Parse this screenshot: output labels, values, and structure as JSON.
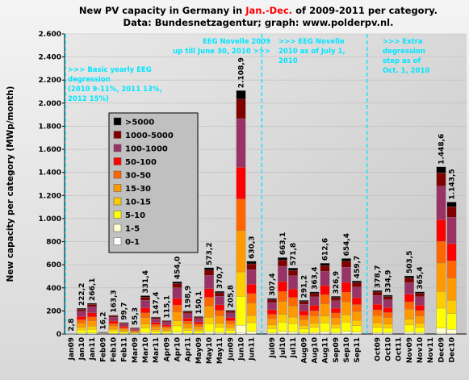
{
  "chart_data": {
    "type": "stacked_bar",
    "title_prefix": "New PV capacity in Germany in ",
    "title_highlight": "Jan.-Dec.",
    "title_suffix": " of 2009-2011 per category.",
    "subtitle": "Data: Bundesnetzagentur; graph: www.polderpv.nl.",
    "highlight_color": "#ff0000",
    "y_label": "New capacity per category (MWp/month)",
    "ylim": [
      0,
      2600
    ],
    "yticks": [
      0,
      200,
      400,
      600,
      800,
      {
        "value": 1000,
        "label": "1.000"
      },
      {
        "value": 1200,
        "label": "1.200"
      },
      {
        "value": 1400,
        "label": "1.400"
      },
      {
        "value": 1600,
        "label": "1.600"
      },
      {
        "value": 1800,
        "label": "1.800"
      },
      {
        "value": 2000,
        "label": "2.000"
      },
      {
        "value": 2200,
        "label": "2.200"
      },
      {
        "value": 2400,
        "label": "2.400"
      },
      {
        "value": 2600,
        "label": "2.600"
      }
    ],
    "grid": true,
    "legend_position": "upper left",
    "annotation_color": "#00e5ff",
    "annotations": [
      {
        "lines": [
          ">>> Basic yearly EEG",
          "degression",
          "(2010 9-11%, 2011 13%,",
          "2012 15%)"
        ]
      },
      {
        "lines": [
          "EEG Novelle 2009",
          "up till June 30, 2010 >>>"
        ]
      },
      {
        "lines": [
          ">>> EEG Novelle",
          "2010 as of July 1,",
          "2010"
        ]
      },
      {
        "lines": [
          ">>> Extra",
          "degression",
          "step as of",
          "Oct. 1, 2010"
        ]
      }
    ],
    "categories": [
      "Jan09",
      "Jan10",
      "Jan11",
      "Feb09",
      "Feb10",
      "Feb11",
      "Mar09",
      "Mar10",
      "Mar11",
      "Apr09",
      "Apr10",
      "Apr11",
      "May09",
      "May10",
      "May11",
      "Jun09",
      "Jun10",
      "Jun11",
      "Jul09",
      "Jul10",
      "Jul11",
      "Aug09",
      "Aug10",
      "Aug11",
      "Sep09",
      "Sep10",
      "Sep11",
      "Oct09",
      "Oct10",
      "Oct11",
      "Nov09",
      "Nov10",
      "Nov11",
      "Dec09",
      "Dec10"
    ],
    "totals": [
      2.8,
      222.2,
      266.1,
      16.2,
      163.3,
      99.7,
      55.3,
      331.4,
      147.4,
      115.1,
      454.0,
      198.9,
      150.1,
      573.2,
      370.7,
      205.8,
      2108.9,
      630.3,
      307.4,
      663.1,
      571.8,
      291.2,
      363.4,
      612.6,
      326.9,
      654.4,
      459.7,
      378.7,
      334.9,
      null,
      503.5,
      365.4,
      null,
      1448.6,
      1143.5
    ],
    "total_labels": [
      "2,8",
      "222,2",
      "266,1",
      "16,2",
      "163,3",
      "99,7",
      "55,3",
      "331,4",
      "147,4",
      "115,1",
      "454,0",
      "198,9",
      "150,1",
      "573,2",
      "370,7",
      "205,8",
      "2.108,9",
      "630,3",
      "307,4",
      "663,1",
      "571,8",
      "291,2",
      "363,4",
      "612,6",
      "326,9",
      "654,4",
      "459,7",
      "378,7",
      "334,9",
      null,
      "503,5",
      "365,4",
      null,
      "1.448,6",
      "1.143,5"
    ],
    "series": [
      {
        "name": "0-1",
        "color": "#ffffff",
        "values": [
          0,
          1,
          1,
          0,
          1,
          0.5,
          0.3,
          2,
          1,
          1,
          2,
          1,
          1,
          3,
          2,
          1,
          11,
          3,
          2,
          3,
          3,
          1,
          2,
          3,
          2,
          3,
          2,
          2,
          2,
          null,
          3,
          2,
          null,
          7,
          6
        ]
      },
      {
        "name": "1-5",
        "color": "#ffffcc",
        "values": [
          0.1,
          7,
          8,
          0.5,
          5,
          3,
          1.7,
          10,
          4,
          3,
          14,
          6,
          5,
          17,
          11,
          6,
          63,
          19,
          9,
          20,
          17,
          9,
          11,
          18,
          10,
          20,
          14,
          11,
          10,
          null,
          15,
          11,
          null,
          43,
          34
        ]
      },
      {
        "name": "5-10",
        "color": "#ffff00",
        "values": [
          0.4,
          27,
          32,
          2,
          20,
          12,
          6.6,
          40,
          18,
          14,
          54,
          24,
          18,
          69,
          44,
          25,
          253,
          76,
          37,
          80,
          69,
          35,
          44,
          74,
          39,
          79,
          55,
          45,
          40,
          null,
          60,
          44,
          null,
          174,
          137
        ]
      },
      {
        "name": "10-15",
        "color": "#ffcc00",
        "values": [
          0.3,
          22,
          27,
          1.6,
          16,
          10,
          5.5,
          33,
          15,
          12,
          45,
          20,
          15,
          57,
          37,
          21,
          211,
          63,
          31,
          66,
          57,
          29,
          36,
          61,
          33,
          65,
          46,
          38,
          33,
          null,
          50,
          37,
          null,
          145,
          114
        ]
      },
      {
        "name": "15-30",
        "color": "#ff9900",
        "values": [
          0.5,
          38,
          45,
          2.8,
          28,
          17,
          9.4,
          56,
          25,
          20,
          77,
          34,
          26,
          97,
          63,
          35,
          358,
          107,
          52,
          113,
          97,
          50,
          62,
          104,
          56,
          111,
          78,
          64,
          57,
          null,
          86,
          62,
          null,
          246,
          194
        ]
      },
      {
        "name": "30-50",
        "color": "#ff6600",
        "values": [
          0.4,
          29,
          35,
          2.1,
          21,
          13,
          7.2,
          43,
          19,
          15,
          59,
          26,
          20,
          75,
          48,
          27,
          274,
          82,
          40,
          86,
          74,
          38,
          47,
          80,
          42,
          85,
          60,
          49,
          44,
          null,
          65,
          47,
          null,
          188,
          149
        ]
      },
      {
        "name": "50-100",
        "color": "#ff0000",
        "values": [
          0.4,
          29,
          35,
          2.1,
          21,
          13,
          7.2,
          43,
          19,
          15,
          59,
          26,
          20,
          75,
          48,
          27,
          274,
          82,
          40,
          86,
          74,
          38,
          47,
          80,
          42,
          85,
          60,
          49,
          44,
          null,
          65,
          47,
          null,
          188,
          149
        ]
      },
      {
        "name": "100-1000",
        "color": "#993366",
        "values": [
          0.6,
          44,
          53,
          3.2,
          33,
          20,
          11,
          66,
          29,
          23,
          91,
          40,
          30,
          115,
          74,
          41,
          422,
          126,
          61,
          133,
          114,
          58,
          73,
          123,
          65,
          131,
          92,
          76,
          67,
          null,
          101,
          73,
          null,
          290,
          229
        ]
      },
      {
        "name": "1000-5000",
        "color": "#800000",
        "values": [
          0.1,
          18,
          21,
          1.3,
          13,
          8,
          4.4,
          27,
          12,
          9,
          36,
          16,
          12,
          46,
          30,
          16,
          169,
          50,
          25,
          53,
          46,
          23,
          29,
          49,
          26,
          52,
          37,
          30,
          27,
          null,
          40,
          29,
          null,
          116,
          91
        ]
      },
      {
        "name": ">5000",
        "color": "#000000",
        "values": [
          0,
          8,
          9,
          0.6,
          5,
          3.2,
          2,
          12,
          5,
          4,
          16,
          7,
          5,
          20,
          13,
          7,
          74,
          22,
          11,
          23,
          20,
          10,
          13,
          21,
          11,
          23,
          16,
          13,
          12,
          null,
          18,
          13,
          null,
          51,
          40
        ]
      }
    ]
  }
}
